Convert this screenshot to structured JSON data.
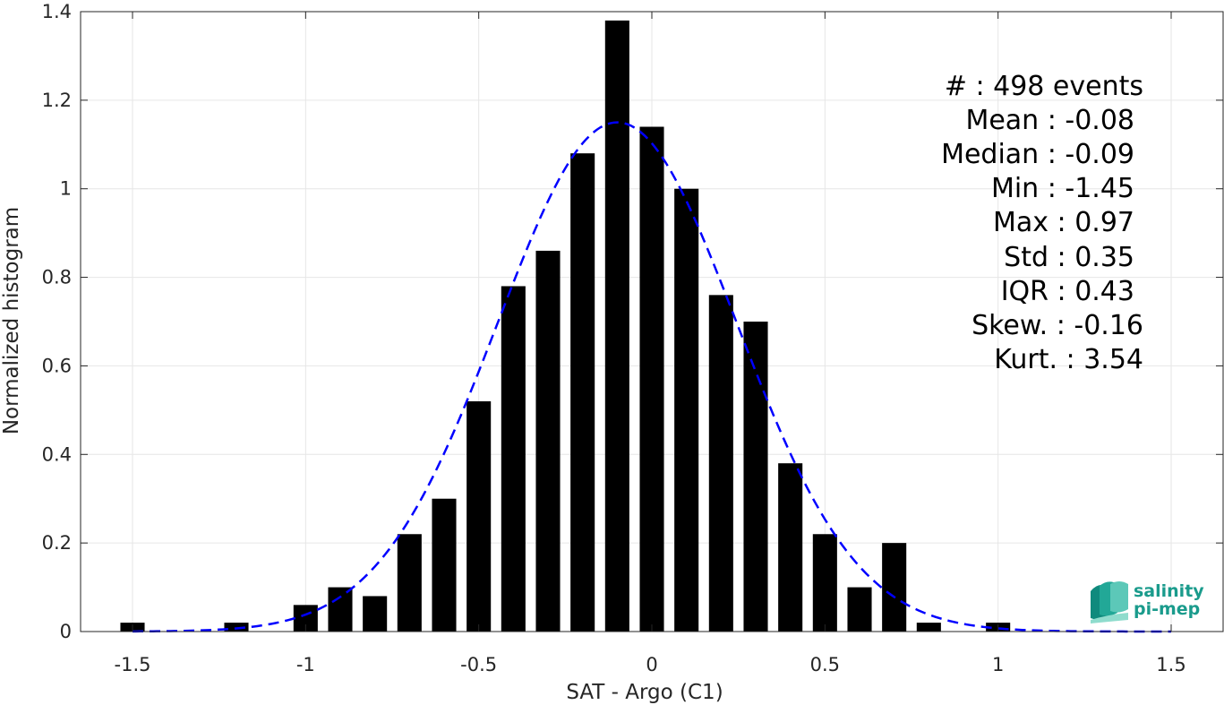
{
  "chart_data": {
    "type": "bar",
    "xlabel": "SAT - Argo (C1)",
    "ylabel": "Normalized histogram",
    "xlim": [
      -1.65,
      1.65
    ],
    "ylim": [
      0,
      1.4
    ],
    "grid": true,
    "x_ticks": [
      -1.5,
      -1,
      -0.5,
      0,
      0.5,
      1,
      1.5
    ],
    "x_tick_labels": [
      "-1.5",
      "-1",
      "-0.5",
      "0",
      "0.5",
      "1",
      "1.5"
    ],
    "y_ticks": [
      0,
      0.2,
      0.4,
      0.6,
      0.8,
      1,
      1.2,
      1.4
    ],
    "y_tick_labels": [
      "0",
      "0.2",
      "0.4",
      "0.6",
      "0.8",
      "1",
      "1.2",
      "1.4"
    ],
    "bar_width": 0.07,
    "bars": {
      "x": [
        -1.5,
        -1.2,
        -1.0,
        -0.9,
        -0.8,
        -0.7,
        -0.6,
        -0.5,
        -0.4,
        -0.3,
        -0.2,
        -0.1,
        0.0,
        0.1,
        0.2,
        0.3,
        0.4,
        0.5,
        0.6,
        0.7,
        0.8,
        1.0
      ],
      "values": [
        0.02,
        0.02,
        0.06,
        0.1,
        0.08,
        0.22,
        0.3,
        0.52,
        0.78,
        0.86,
        1.08,
        1.38,
        1.14,
        1.0,
        0.76,
        0.7,
        0.38,
        0.22,
        0.1,
        0.2,
        0.02,
        0.02
      ],
      "color": "#000000"
    },
    "fit_curve": {
      "style": "dashed",
      "color": "#0000ff",
      "mean": -0.1,
      "std": 0.345,
      "peak": 1.15,
      "x_range": [
        -1.5,
        1.5
      ]
    },
    "annotations": [
      "#  : 498 events",
      "Mean : -0.08",
      "Median : -0.09",
      "Min : -1.45",
      "Max : 0.97",
      "Std : 0.35",
      "IQR : 0.43",
      "Skew. : -0.16",
      "Kurt. : 3.54"
    ]
  },
  "logo": {
    "line1": "salinity",
    "line2": "pi-mep",
    "color": "#1a9b8c"
  }
}
